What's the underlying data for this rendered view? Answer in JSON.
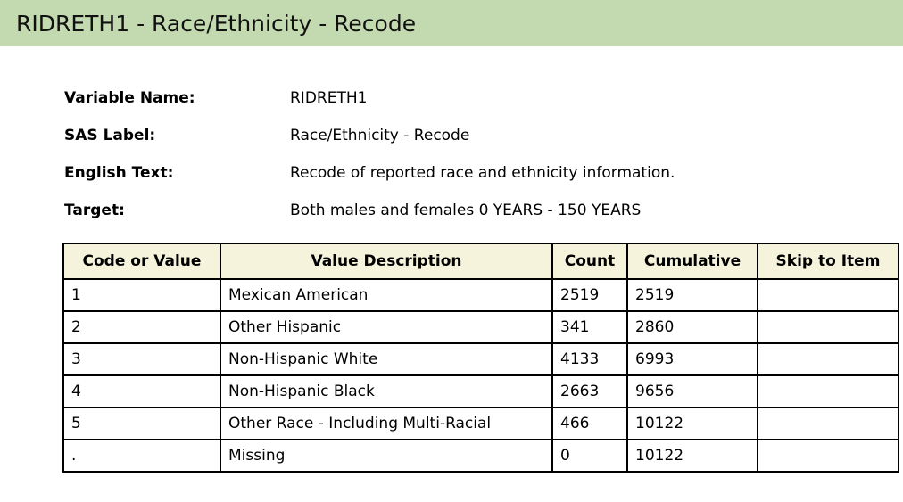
{
  "header": {
    "title": "RIDRETH1 - Race/Ethnicity - Recode"
  },
  "meta": [
    {
      "label": "Variable Name:",
      "value": "RIDRETH1"
    },
    {
      "label": "SAS Label:",
      "value": "Race/Ethnicity - Recode"
    },
    {
      "label": "English Text:",
      "value": "Recode of reported race and ethnicity information."
    },
    {
      "label": "Target:",
      "value": "Both males and females 0 YEARS - 150 YEARS"
    }
  ],
  "table": {
    "columns": [
      "Code or Value",
      "Value Description",
      "Count",
      "Cumulative",
      "Skip to Item"
    ],
    "rows": [
      [
        "1",
        "Mexican American",
        "2519",
        "2519",
        ""
      ],
      [
        "2",
        "Other Hispanic",
        "341",
        "2860",
        ""
      ],
      [
        "3",
        "Non-Hispanic White",
        "4133",
        "6993",
        ""
      ],
      [
        "4",
        "Non-Hispanic Black",
        "2663",
        "9656",
        ""
      ],
      [
        "5",
        "Other Race - Including Multi-Racial",
        "466",
        "10122",
        ""
      ],
      [
        ".",
        "Missing",
        "0",
        "10122",
        ""
      ]
    ]
  },
  "colors": {
    "title_bar": "#c3d9b0",
    "header_cell": "#f5f3dc",
    "border": "#000000"
  }
}
